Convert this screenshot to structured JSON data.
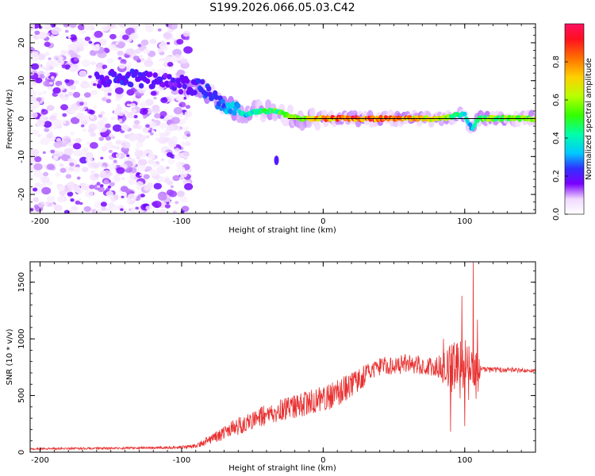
{
  "figure": {
    "title": "S199.2026.066.05.03.C42"
  },
  "chart_data": [
    {
      "type": "heatmap",
      "title": "S199.2026.066.05.03.C42",
      "xlabel": "Height of straight line (km)",
      "ylabel": "Frequency (Hz)",
      "xlim": [
        -207,
        150
      ],
      "ylim": [
        -25,
        25
      ],
      "xticks": [
        -200,
        -100,
        0,
        100
      ],
      "yticks": [
        -20,
        -10,
        0,
        10,
        20
      ],
      "colorbar": {
        "label": "Normalized spectral amplitude",
        "range": [
          0,
          1
        ],
        "ticks": [
          0.0,
          0.2,
          0.4,
          0.6,
          0.8
        ]
      },
      "description_points": {
        "ridge_x": [
          -155,
          -140,
          -120,
          -100,
          -85,
          -75,
          -65,
          -55,
          -45,
          -35,
          -25,
          -15,
          -5,
          0,
          20,
          40,
          55,
          70,
          85,
          95,
          100,
          105,
          110,
          150
        ],
        "ridge_freq": [
          10,
          11,
          10,
          9,
          8,
          5,
          3,
          1,
          2,
          2,
          1,
          0,
          0,
          0,
          0,
          0,
          0,
          0,
          0,
          1,
          1,
          -3,
          0,
          0
        ],
        "ridge_amplitude": [
          0.2,
          0.25,
          0.2,
          0.2,
          0.25,
          0.3,
          0.35,
          0.4,
          0.45,
          0.55,
          0.6,
          0.7,
          0.8,
          0.85,
          0.95,
          0.95,
          0.9,
          0.8,
          0.7,
          0.5,
          0.45,
          0.35,
          0.6,
          0.65
        ]
      }
    },
    {
      "type": "line",
      "xlabel": "Height of straight line (km)",
      "ylabel": "SNR (10 * v/v)",
      "xlim": [
        -207,
        150
      ],
      "ylim": [
        0,
        1680
      ],
      "xticks": [
        -200,
        -100,
        0,
        100
      ],
      "yticks": [
        0,
        500,
        1000,
        1500
      ],
      "color": "#e83030",
      "trend": {
        "x": [
          -207,
          -150,
          -110,
          -100,
          -90,
          -80,
          -70,
          -60,
          -50,
          -40,
          -30,
          -20,
          -10,
          0,
          10,
          20,
          30,
          40,
          60,
          80,
          90,
          100,
          108,
          112,
          120,
          150
        ],
        "y": [
          30,
          35,
          40,
          45,
          55,
          110,
          170,
          230,
          280,
          330,
          370,
          400,
          430,
          470,
          520,
          600,
          680,
          760,
          780,
          760,
          740,
          700,
          680,
          720,
          730,
          720
        ]
      },
      "noise": {
        "x": [
          -207,
          -110,
          -90,
          -60,
          -30,
          0,
          20,
          40,
          80,
          90,
          100,
          108,
          112,
          150
        ],
        "amplitude": [
          8,
          10,
          20,
          80,
          100,
          120,
          110,
          80,
          90,
          220,
          300,
          250,
          30,
          15
        ]
      },
      "spikes": [
        {
          "x": 85,
          "y": 1000
        },
        {
          "x": 90,
          "y": 180
        },
        {
          "x": 98,
          "y": 1380
        },
        {
          "x": 100,
          "y": 230
        },
        {
          "x": 106,
          "y": 1680
        },
        {
          "x": 109,
          "y": 1170
        }
      ]
    }
  ]
}
